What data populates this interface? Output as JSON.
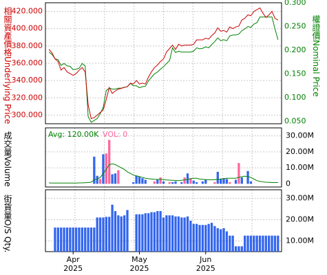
{
  "chart_data": [
    {
      "type": "line",
      "panel": "price",
      "left_axis_label_zh": "相關資產價格",
      "left_axis_label_en": "Underlying Price",
      "right_axis_label_zh": "權證價",
      "right_axis_label_en": "Nominal Price",
      "left_ylim": [
        290000,
        430000
      ],
      "left_ticks": [
        "300.000",
        "320.000",
        "340.000",
        "360.000",
        "380.000",
        "400.000",
        "420.000"
      ],
      "left_tick_values": [
        300000,
        320000,
        340000,
        360000,
        380000,
        400000,
        420000
      ],
      "right_ylim": [
        0.045,
        0.3
      ],
      "right_ticks": [
        "0.050",
        "0.100",
        "0.150",
        "0.200",
        "0.250",
        "0.300"
      ],
      "right_tick_values": [
        0.05,
        0.1,
        0.15,
        0.2,
        0.25,
        0.3
      ],
      "grid": true,
      "colors": {
        "underlying": "#cc0000",
        "warrant": "#008000"
      },
      "series": [
        {
          "axis": "left",
          "values": [
            376000,
            372000,
            365000,
            362000,
            352000,
            355000,
            350000,
            348000,
            346000,
            348000,
            352000,
            355000,
            350000,
            312000,
            296000,
            297000,
            300000,
            303000,
            306000,
            318000,
            332000,
            325000,
            328000,
            330000,
            331000,
            332000,
            333000,
            337000,
            336000,
            340000,
            336000,
            337000,
            336000,
            344000,
            350000,
            355000,
            358000,
            362000,
            365000,
            373000,
            377000,
            381000,
            376000,
            382000,
            380000,
            381000,
            381000,
            381000,
            382000,
            387000,
            387000,
            387000,
            389000,
            388000,
            392000,
            395000,
            401000,
            397000,
            398000,
            396000,
            402000,
            400000,
            402000,
            403000,
            410000,
            412000,
            416000,
            415000,
            420000,
            422000,
            424000,
            418000,
            413000,
            416000,
            420000,
            412000,
            410000
          ]
        },
        {
          "axis": "right",
          "values": [
            0.196,
            0.191,
            0.182,
            0.18,
            0.168,
            0.172,
            0.167,
            0.166,
            0.159,
            0.16,
            0.162,
            0.172,
            0.167,
            0.06,
            0.048,
            0.052,
            0.056,
            0.066,
            0.08,
            0.115,
            0.12,
            0.118,
            0.118,
            0.12,
            0.12,
            0.122,
            0.123,
            0.13,
            0.125,
            0.125,
            0.121,
            0.123,
            0.124,
            0.135,
            0.143,
            0.15,
            0.154,
            0.16,
            0.165,
            0.172,
            0.178,
            0.205,
            0.195,
            0.198,
            0.196,
            0.196,
            0.196,
            0.196,
            0.198,
            0.205,
            0.203,
            0.204,
            0.207,
            0.205,
            0.212,
            0.218,
            0.226,
            0.22,
            0.222,
            0.22,
            0.23,
            0.232,
            0.232,
            0.234,
            0.241,
            0.245,
            0.25,
            0.248,
            0.255,
            0.258,
            0.27,
            0.27,
            0.27,
            0.27,
            0.27,
            0.245,
            0.222
          ]
        }
      ]
    },
    {
      "type": "bar",
      "panel": "volume",
      "ylabel_zh": "成交量",
      "ylabel_en": "Volume",
      "legend": {
        "avg_label": "Avg: 120.00K",
        "vol_label": "VOL: 0"
      },
      "ylim": [
        -2000000,
        35000000
      ],
      "ticks": [
        "0",
        "10.00M",
        "20.00M",
        "30.00M"
      ],
      "tick_values": [
        0,
        10000000,
        20000000,
        30000000
      ],
      "colors": {
        "up": "#ff6699",
        "down": "#3366ee",
        "avg_line": "#008000"
      },
      "bars": [
        {
          "i": 15,
          "v": 17000000,
          "c": "down"
        },
        {
          "i": 16,
          "v": 5000000,
          "c": "down"
        },
        {
          "i": 17,
          "v": 3000000,
          "c": "up"
        },
        {
          "i": 18,
          "v": 18500000,
          "c": "down"
        },
        {
          "i": 19,
          "v": 19000000,
          "c": "up"
        },
        {
          "i": 20,
          "v": 27500000,
          "c": "up"
        },
        {
          "i": 21,
          "v": 6000000,
          "c": "down"
        },
        {
          "i": 22,
          "v": 6500000,
          "c": "down"
        },
        {
          "i": 23,
          "v": 8500000,
          "c": "up"
        },
        {
          "i": 28,
          "v": 1000000,
          "c": "down"
        },
        {
          "i": 29,
          "v": 5000000,
          "c": "down"
        },
        {
          "i": 30,
          "v": 4500000,
          "c": "down"
        },
        {
          "i": 31,
          "v": 3500000,
          "c": "down"
        },
        {
          "i": 32,
          "v": 2500000,
          "c": "down"
        },
        {
          "i": 35,
          "v": 1500000,
          "c": "up"
        },
        {
          "i": 36,
          "v": 2500000,
          "c": "down"
        },
        {
          "i": 37,
          "v": 4000000,
          "c": "up"
        },
        {
          "i": 38,
          "v": 1500000,
          "c": "down"
        },
        {
          "i": 40,
          "v": 1000000,
          "c": "up"
        },
        {
          "i": 41,
          "v": 1000000,
          "c": "down"
        },
        {
          "i": 42,
          "v": 1500000,
          "c": "down"
        },
        {
          "i": 44,
          "v": 1000000,
          "c": "down"
        },
        {
          "i": 45,
          "v": 4000000,
          "c": "up"
        },
        {
          "i": 46,
          "v": 6500000,
          "c": "down"
        },
        {
          "i": 47,
          "v": 3500000,
          "c": "up"
        },
        {
          "i": 48,
          "v": 2000000,
          "c": "down"
        },
        {
          "i": 49,
          "v": 1000000,
          "c": "down"
        },
        {
          "i": 51,
          "v": 1500000,
          "c": "down"
        },
        {
          "i": 52,
          "v": 2500000,
          "c": "down"
        },
        {
          "i": 55,
          "v": 1000000,
          "c": "up"
        },
        {
          "i": 56,
          "v": 7500000,
          "c": "down"
        },
        {
          "i": 57,
          "v": 3000000,
          "c": "down"
        },
        {
          "i": 58,
          "v": 3500000,
          "c": "down"
        },
        {
          "i": 59,
          "v": 3000000,
          "c": "down"
        },
        {
          "i": 60,
          "v": 1000000,
          "c": "up"
        },
        {
          "i": 62,
          "v": 2500000,
          "c": "down"
        },
        {
          "i": 63,
          "v": 13000000,
          "c": "up"
        },
        {
          "i": 64,
          "v": 4000000,
          "c": "down"
        },
        {
          "i": 66,
          "v": 8000000,
          "c": "down"
        },
        {
          "i": 67,
          "v": 1500000,
          "c": "down"
        }
      ],
      "avg_line": [
        0.6,
        0.5,
        0.5,
        0.5,
        0.5,
        0.5,
        0.5,
        0.5,
        0.5,
        0.5,
        0.6,
        0.6,
        0.7,
        0.8,
        1.0,
        2.5,
        3.0,
        4.0,
        6.5,
        9.0,
        12.0,
        12.5,
        12.0,
        11.0,
        10.0,
        9.0,
        7.5,
        6.5,
        5.5,
        5.0,
        4.5,
        4.0,
        3.5,
        3.2,
        3.0,
        2.8,
        2.8,
        2.8,
        2.6,
        2.4,
        2.3,
        2.2,
        2.1,
        2.0,
        2.2,
        2.4,
        2.8,
        3.2,
        3.5,
        3.5,
        3.0,
        2.8,
        2.6,
        2.5,
        2.5,
        2.5,
        2.8,
        3.0,
        3.2,
        3.5,
        3.5,
        3.5,
        3.5,
        4.0,
        4.5,
        4.8,
        4.5,
        4.0,
        3.0,
        2.0,
        1.5,
        1.2,
        1.0,
        0.9,
        0.8,
        0.8,
        0.8
      ]
    },
    {
      "type": "bar",
      "panel": "outstanding",
      "ylabel_zh": "街貨量",
      "ylabel_en": "O/S Qty.",
      "ylim": [
        5000000,
        34000000
      ],
      "ticks": [
        "10.00M",
        "20.00M",
        "30.00M"
      ],
      "tick_values": [
        10000000,
        20000000,
        30000000
      ],
      "color": "#3366ee",
      "start_index": 2,
      "values": [
        16300000,
        16300000,
        16300000,
        16300000,
        16300000,
        16300000,
        16300000,
        16300000,
        16300000,
        16300000,
        16300000,
        16300000,
        16300000,
        16300000,
        21000000,
        21000000,
        21000000,
        21300000,
        21300000,
        27000000,
        24000000,
        22000000,
        21500000,
        22000000,
        24500000,
        null,
        null,
        22500000,
        22500000,
        22500000,
        23000000,
        23000000,
        23500000,
        23500000,
        24000000,
        24000000,
        21000000,
        22000000,
        22000000,
        22000000,
        21500000,
        21500000,
        21000000,
        21000000,
        21500000,
        19500000,
        18000000,
        18000000,
        17500000,
        17500000,
        17500000,
        18000000,
        18500000,
        17000000,
        16000000,
        15500000,
        16000000,
        14500000,
        12500000,
        12500000,
        7500000,
        7500000,
        7500000,
        12500000,
        12500000,
        12500000,
        12500000,
        12500000,
        12500000,
        12500000,
        12500000,
        12500000,
        12500000,
        12500000,
        12500000
      ]
    }
  ],
  "x_axis": {
    "n": 77,
    "months": [
      {
        "label": "Apr",
        "year": "2025",
        "index": 8
      },
      {
        "label": "May",
        "year": "2025",
        "index": 30
      },
      {
        "label": "Jun",
        "year": "2025",
        "index": 52
      }
    ]
  }
}
